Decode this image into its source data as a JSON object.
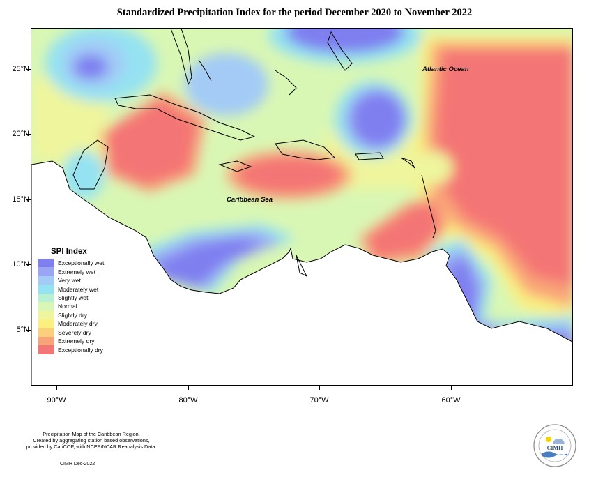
{
  "title": "Standardized Precipitation Index for the period December 2020 to November 2022",
  "map": {
    "labels": {
      "atlantic": "Atlantic Ocean",
      "caribbean": "Caribbean Sea"
    },
    "lat_ticks": [
      "25°N",
      "20°N",
      "15°N",
      "10°N",
      "5°N"
    ],
    "lon_ticks": [
      "90°W",
      "80°W",
      "70°W",
      "60°W"
    ]
  },
  "legend": {
    "title": "SPI Index",
    "items": [
      {
        "label": "Exceptionally wet",
        "color": "#7f7ff0"
      },
      {
        "label": "Extremely wet",
        "color": "#9aa6f3"
      },
      {
        "label": "Very wet",
        "color": "#a3cbf6"
      },
      {
        "label": "Moderately wet",
        "color": "#94e2f2"
      },
      {
        "label": "Slightly wet",
        "color": "#b7f0d2"
      },
      {
        "label": "Normal",
        "color": "#d9f7b4"
      },
      {
        "label": "Slightly dry",
        "color": "#eef59c"
      },
      {
        "label": "Moderately dry",
        "color": "#fbef80"
      },
      {
        "label": "Severely dry",
        "color": "#fbcf7c"
      },
      {
        "label": "Extremely dry",
        "color": "#f9a478"
      },
      {
        "label": "Exceptionally dry",
        "color": "#f47575"
      }
    ]
  },
  "footer": {
    "line1": "Precipitation Map of the Caribbean Region.",
    "line2": "Created by aggregating station based observations,",
    "line3": "provided by CariCOF, with NCEP/NCAR Reanalysis Data.",
    "credit": "CIMH Dec-2022"
  },
  "logo": {
    "text": "CIMH"
  }
}
